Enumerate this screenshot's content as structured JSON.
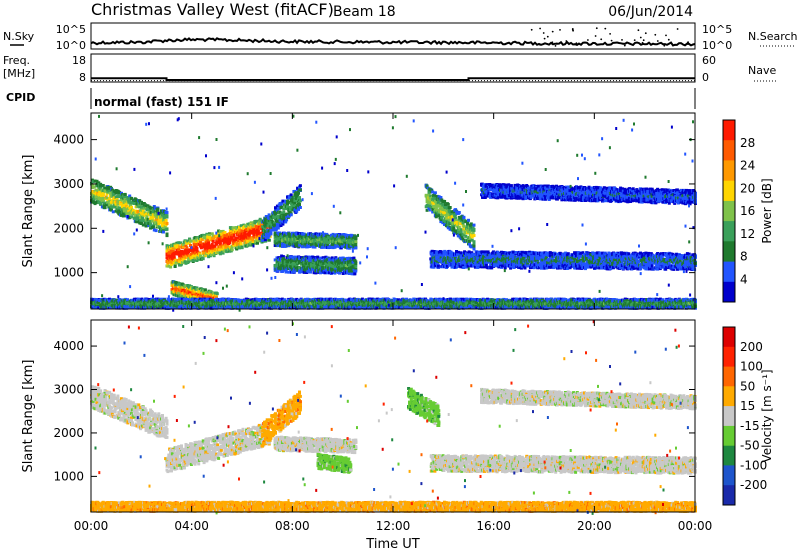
{
  "header": {
    "station": "Christmas Valley West (fitACF)",
    "beam": "Beam 18",
    "date": "06/Jun/2014"
  },
  "strip_labels": {
    "nsky": "N.Sky",
    "nsearch": "N.Search",
    "freq": "Freq.",
    "freq_unit": "[MHz]",
    "nave": "Nave",
    "cpid": "CPID",
    "cpid_value": "normal (fast) 151 IF"
  },
  "chart_data": [
    {
      "type": "line",
      "name": "noise",
      "left_ticks": [
        "10^5",
        "10^0"
      ],
      "right_ticks": [
        "10^5",
        "10^0"
      ],
      "series": [
        {
          "name": "N.Sky",
          "style": "solid",
          "x": [
            0,
            1,
            2,
            3,
            4,
            5,
            6,
            7,
            8,
            10,
            12,
            14,
            16,
            18,
            20,
            22,
            24
          ],
          "y_frac": [
            0.35,
            0.38,
            0.4,
            0.55,
            0.62,
            0.6,
            0.55,
            0.5,
            0.45,
            0.42,
            0.4,
            0.38,
            0.35,
            0.3,
            0.28,
            0.26,
            0.25
          ]
        }
      ]
    },
    {
      "type": "line",
      "name": "frequency",
      "left_ticks": [
        "18",
        "8"
      ],
      "right_ticks": [
        "60",
        "0"
      ],
      "series": [
        {
          "name": "Freq",
          "style": "solid",
          "x": [
            0,
            3,
            3,
            15,
            15,
            24
          ],
          "y": [
            10.5,
            10.5,
            9.3,
            9.3,
            10.5,
            10.5
          ]
        },
        {
          "name": "Nave",
          "style": "dotted",
          "x": [
            0,
            24
          ],
          "y": [
            8.9,
            8.9
          ]
        }
      ]
    },
    {
      "type": "heatmap",
      "name": "power",
      "ylabel": "Slant Range [km]",
      "xlim": [
        0,
        24
      ],
      "ylim": [
        180,
        4600
      ],
      "yticks": [
        1000,
        2000,
        3000,
        4000
      ],
      "colorbar": {
        "label": "Power [dB]",
        "ticks": [
          "28",
          "24",
          "20",
          "16",
          "12",
          "8",
          "4"
        ],
        "colors": [
          "#0000cc",
          "#2255ff",
          "#1f7a2e",
          "#3aa05a",
          "#7fc24a",
          "#ffd500",
          "#ff9900",
          "#ff5a00",
          "#ff1a00"
        ]
      },
      "features": [
        {
          "x0": 0,
          "x1": 3,
          "r0": 2850,
          "r1": 2100,
          "w": 380,
          "lvl": 0.5
        },
        {
          "x0": 3,
          "x1": 7.1,
          "r0": 1350,
          "r1": 2000,
          "w": 380,
          "lvl": 0.85
        },
        {
          "x0": 3.2,
          "x1": 5,
          "r0": 650,
          "r1": 400,
          "w": 220,
          "lvl": 0.7
        },
        {
          "x0": 6.8,
          "x1": 8.3,
          "r0": 1950,
          "r1": 2700,
          "w": 380,
          "lvl": 0.3
        },
        {
          "x0": 7.3,
          "x1": 10.5,
          "r0": 1750,
          "r1": 1700,
          "w": 220,
          "lvl": 0.35
        },
        {
          "x0": 7.3,
          "x1": 10.5,
          "r0": 1200,
          "r1": 1150,
          "w": 260,
          "lvl": 0.3
        },
        {
          "x0": 13.3,
          "x1": 15.2,
          "r0": 2700,
          "r1": 1800,
          "w": 400,
          "lvl": 0.45
        },
        {
          "x0": 13.5,
          "x1": 24,
          "r0": 1300,
          "r1": 1250,
          "w": 260,
          "lvl": 0.2
        },
        {
          "x0": 15.5,
          "x1": 24,
          "r0": 2850,
          "r1": 2700,
          "w": 220,
          "lvl": 0.15
        },
        {
          "x0": 0,
          "x1": 24,
          "r0": 300,
          "r1": 300,
          "w": 150,
          "lvl": 0.3
        }
      ]
    },
    {
      "type": "heatmap",
      "name": "velocity",
      "ylabel": "Slant Range [km]",
      "xlabel": "Time UT",
      "xlim": [
        0,
        24
      ],
      "ylim": [
        180,
        4600
      ],
      "yticks": [
        1000,
        2000,
        3000,
        4000
      ],
      "xticks": [
        "00:00",
        "04:00",
        "08:00",
        "12:00",
        "16:00",
        "20:00",
        "00:00"
      ],
      "colorbar": {
        "label": "Velocity [m s⁻¹]",
        "ticks": [
          "200",
          "100",
          "50",
          "15",
          "-15",
          "-50",
          "-100",
          "-200"
        ],
        "colors": [
          "#1a2aaa",
          "#1e55cc",
          "#1e8840",
          "#66cc33",
          "#c8c8c8",
          "#ffaa00",
          "#ff6600",
          "#ff2200",
          "#dd0000"
        ]
      },
      "features": [
        {
          "x0": 0,
          "x1": 3,
          "r0": 2850,
          "r1": 2100,
          "w": 380,
          "cls": 4
        },
        {
          "x0": 3,
          "x1": 7.1,
          "r0": 1350,
          "r1": 2000,
          "w": 380,
          "cls": 4
        },
        {
          "x0": 6.8,
          "x1": 8.3,
          "r0": 1950,
          "r1": 2700,
          "w": 380,
          "cls": 5
        },
        {
          "x0": 7.3,
          "x1": 10.5,
          "r0": 1750,
          "r1": 1700,
          "w": 220,
          "cls": 4
        },
        {
          "x0": 9,
          "x1": 10.3,
          "r0": 1350,
          "r1": 1250,
          "w": 240,
          "cls": 3
        },
        {
          "x0": 12.6,
          "x1": 13.8,
          "r0": 2800,
          "r1": 2400,
          "w": 350,
          "cls": 3
        },
        {
          "x0": 13.5,
          "x1": 24,
          "r0": 1300,
          "r1": 1250,
          "w": 260,
          "cls": 4
        },
        {
          "x0": 15.5,
          "x1": 24,
          "r0": 2850,
          "r1": 2700,
          "w": 220,
          "cls": 4
        },
        {
          "x0": 0,
          "x1": 24,
          "r0": 300,
          "r1": 300,
          "w": 150,
          "cls": 5
        }
      ]
    }
  ]
}
